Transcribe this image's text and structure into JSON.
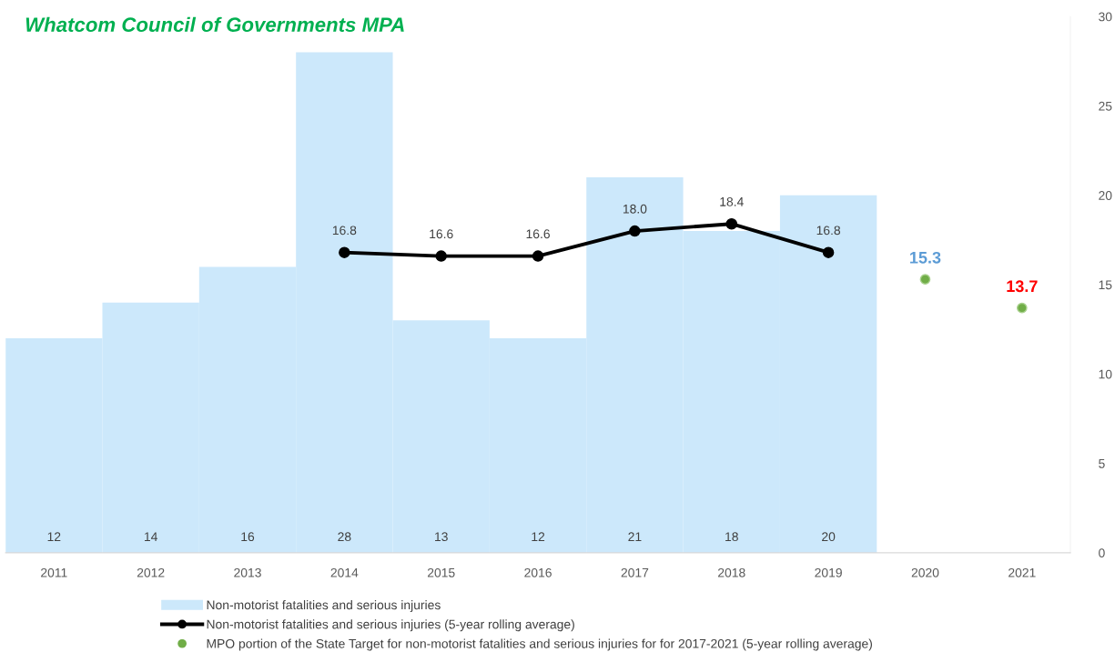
{
  "chart_data": {
    "type": "bar",
    "title": "Whatcom Council of Governments MPA",
    "categories": [
      "2011",
      "2012",
      "2013",
      "2014",
      "2015",
      "2016",
      "2017",
      "2018",
      "2019",
      "2020",
      "2021"
    ],
    "series": [
      {
        "name": "Non-motorist fatalities and serious injuries",
        "color": "#cce8fb",
        "values": [
          12,
          14,
          16,
          28,
          13,
          12,
          21,
          18,
          20,
          null,
          null
        ]
      },
      {
        "name": "Non-motorist fatalities and serious injuries (5-year rolling average)",
        "type": "line",
        "color": "#000000",
        "marker": "circle",
        "values": [
          null,
          null,
          null,
          16.8,
          16.6,
          16.6,
          18.0,
          18.4,
          16.8,
          null,
          null
        ],
        "value_labels": [
          null,
          null,
          null,
          "16.8",
          "16.6",
          "16.6",
          "18.0",
          "18.4",
          "16.8",
          null,
          null
        ]
      },
      {
        "name": "MPO portion of the State Target for non-motorist fatalities and serious injuries for for 2017-2021 (5-year rolling average)",
        "type": "scatter",
        "color": "#70ad47",
        "marker": "circle",
        "values": [
          null,
          null,
          null,
          null,
          null,
          null,
          null,
          null,
          null,
          15.3,
          13.7
        ]
      }
    ],
    "ylim": [
      0,
      30
    ],
    "yticks": [
      0,
      5,
      10,
      15,
      20,
      25,
      30
    ],
    "grid": false,
    "legend": "bottom",
    "data_labels": true
  }
}
